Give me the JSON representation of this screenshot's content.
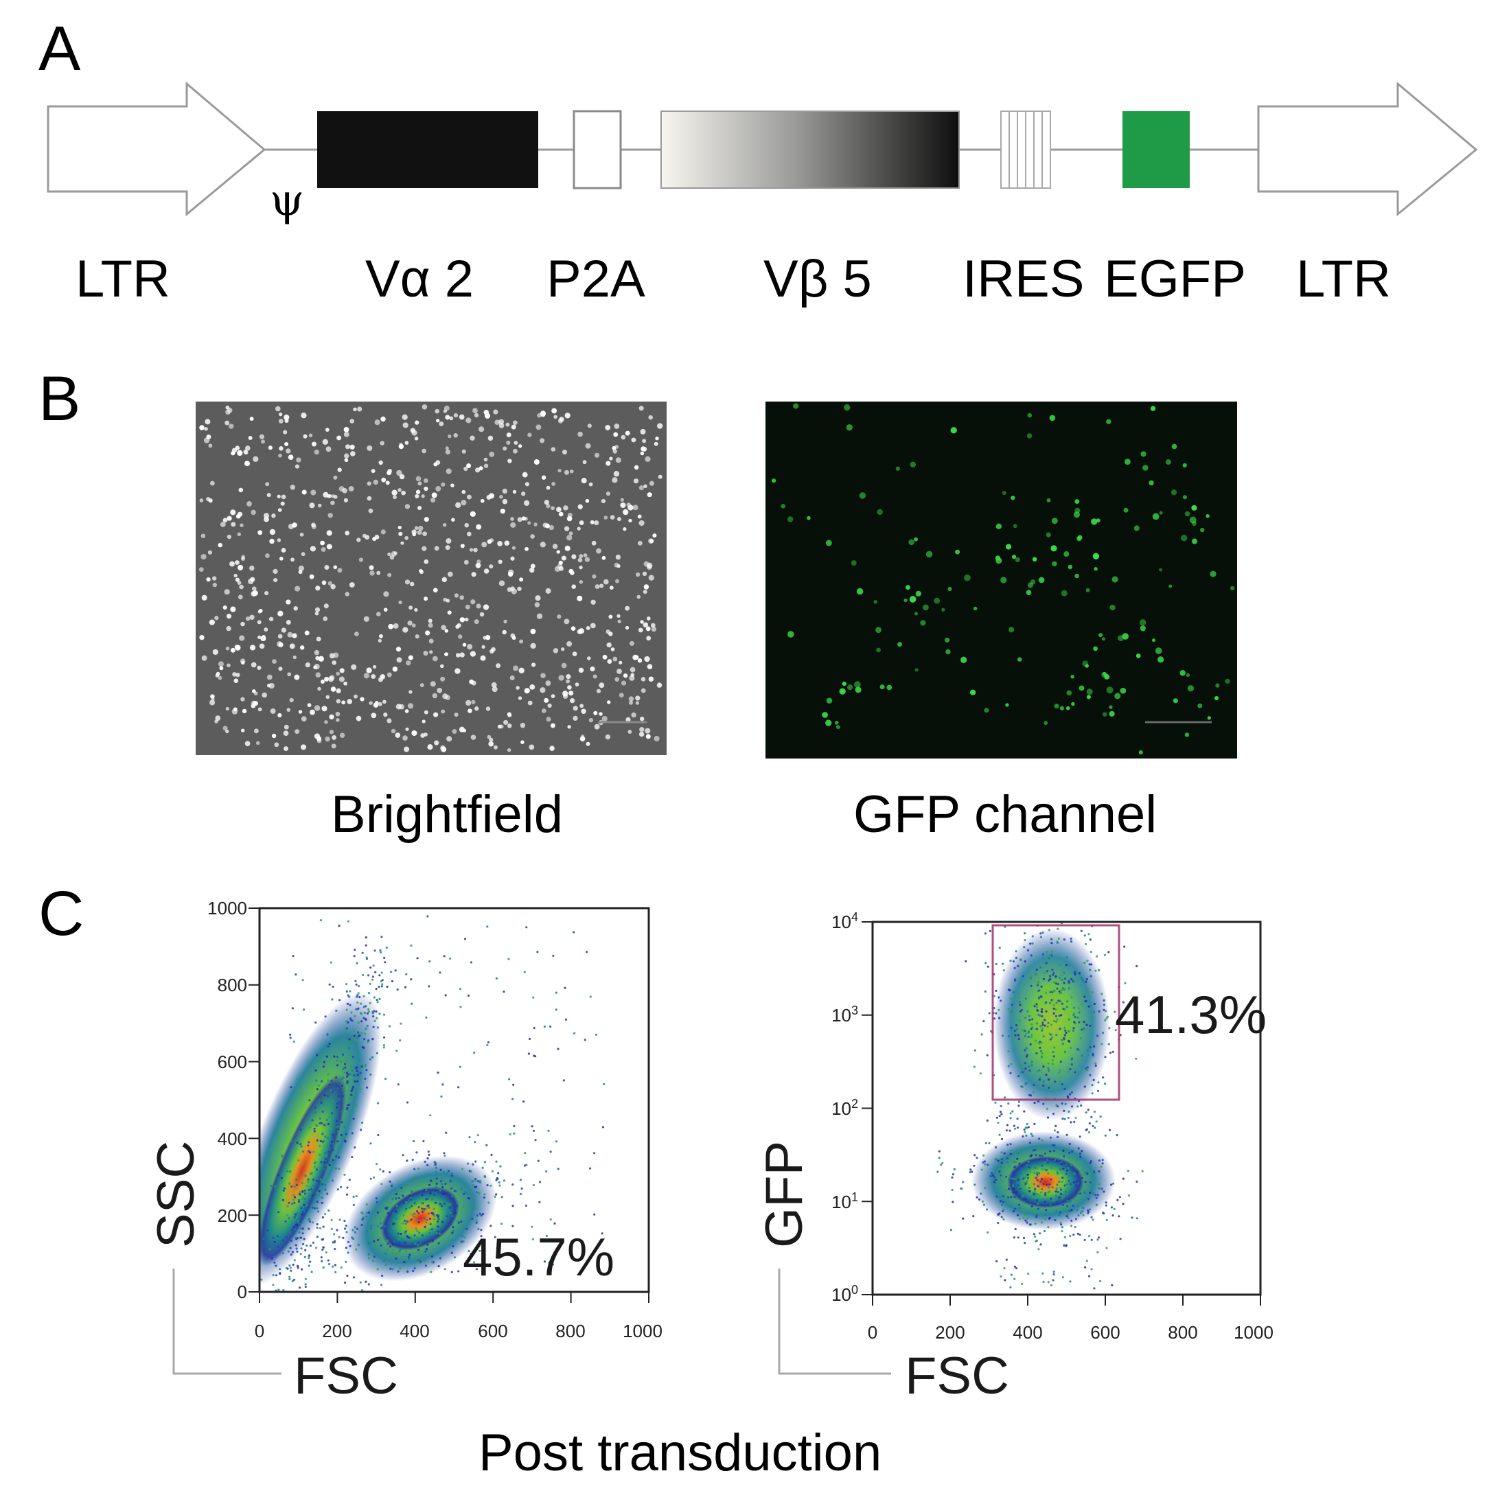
{
  "panels": {
    "a": {
      "label": "A"
    },
    "b": {
      "label": "B"
    },
    "c": {
      "label": "C"
    }
  },
  "construct": {
    "psi": "ψ",
    "elements": [
      {
        "name": "LTR",
        "kind": "arrow"
      },
      {
        "name": "Vα 2",
        "kind": "solid",
        "color": "#111111"
      },
      {
        "name": "P2A",
        "kind": "open"
      },
      {
        "name": "Vβ 5",
        "kind": "gradient"
      },
      {
        "name": "IRES",
        "kind": "hatched"
      },
      {
        "name": "EGFP",
        "kind": "solid",
        "color": "#1f9b47"
      },
      {
        "name": "LTR",
        "kind": "arrow"
      }
    ]
  },
  "images": {
    "brightfield": {
      "caption": "Brightfield",
      "background": "#5c5c5c",
      "cell_color": "#ffffff"
    },
    "gfp": {
      "caption": "GFP channel",
      "background": "#071008",
      "cell_color": "#3ddc4a"
    }
  },
  "flow": {
    "footer": "Post transduction",
    "left": {
      "x_title": "FSC",
      "y_title": "SSC",
      "x_ticks": [
        "0",
        "200",
        "400",
        "600",
        "800",
        "1000"
      ],
      "y_ticks": [
        "0",
        "200",
        "400",
        "600",
        "800",
        "1000"
      ],
      "gate_percent": "45.7%"
    },
    "right": {
      "x_title": "FSC",
      "y_title": "GFP",
      "x_ticks": [
        "0",
        "200",
        "400",
        "600",
        "800",
        "1000"
      ],
      "y_ticks": [
        {
          "base": "10",
          "exp": "0"
        },
        {
          "base": "10",
          "exp": "1"
        },
        {
          "base": "10",
          "exp": "2"
        },
        {
          "base": "10",
          "exp": "3"
        },
        {
          "base": "10",
          "exp": "4"
        }
      ],
      "gate_percent": "41.3%",
      "gate_color": "#a0306a"
    }
  },
  "chart_data": [
    {
      "type": "scatter",
      "title": "",
      "xlabel": "FSC",
      "ylabel": "SSC",
      "xlim": [
        0,
        1000
      ],
      "ylim": [
        0,
        1000
      ],
      "xscale": "linear",
      "yscale": "linear",
      "populations": [
        {
          "center": [
            150,
            350
          ],
          "extent": "diagonal band from (70, 0) to (300, 850)"
        },
        {
          "center": [
            430,
            220
          ],
          "extent": "dense cluster, gated"
        }
      ],
      "annotation": "45.7%"
    },
    {
      "type": "scatter",
      "title": "",
      "xlabel": "FSC",
      "ylabel": "GFP",
      "xlim": [
        0,
        1000
      ],
      "ylim": [
        1,
        10000
      ],
      "xscale": "linear",
      "yscale": "log",
      "populations": [
        {
          "center": [
            440,
            15
          ],
          "extent": "GFP-negative cluster"
        },
        {
          "center": [
            460,
            1000
          ],
          "extent": "GFP-positive cluster, gated"
        }
      ],
      "gate": {
        "x": [
          310,
          640
        ],
        "y": [
          130,
          9000
        ]
      },
      "annotation": "41.3%"
    }
  ]
}
